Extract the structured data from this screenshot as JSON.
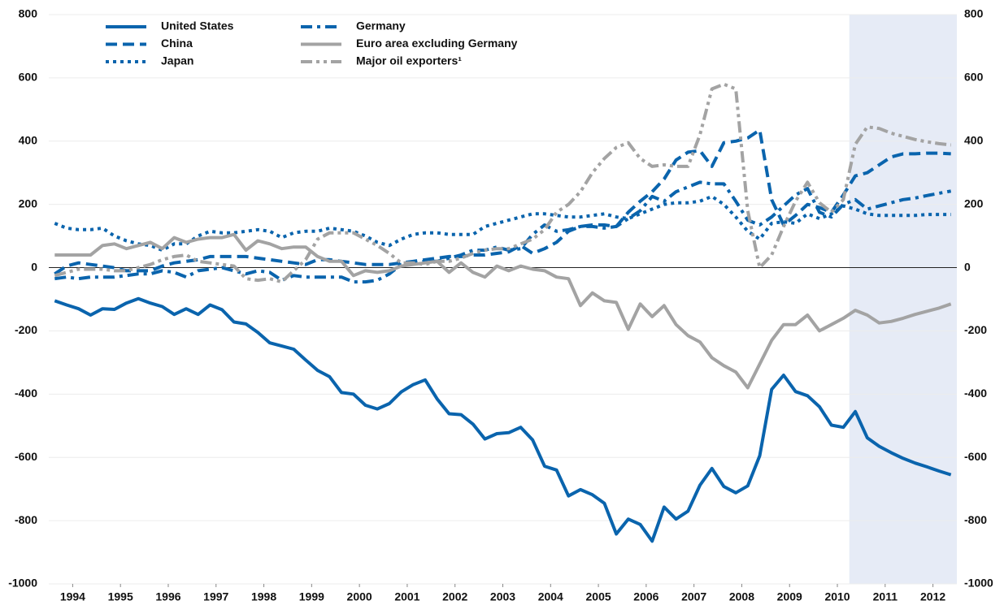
{
  "chart_data": {
    "type": "line",
    "x": [
      1994.125,
      1994.375,
      1994.625,
      1994.875,
      1995.125,
      1995.375,
      1995.625,
      1995.875,
      1996.125,
      1996.375,
      1996.625,
      1996.875,
      1997.125,
      1997.375,
      1997.625,
      1997.875,
      1998.125,
      1998.375,
      1998.625,
      1998.875,
      1999.125,
      1999.375,
      1999.625,
      1999.875,
      2000.125,
      2000.375,
      2000.625,
      2000.875,
      2001.125,
      2001.375,
      2001.625,
      2001.875,
      2002.125,
      2002.375,
      2002.625,
      2002.875,
      2003.125,
      2003.375,
      2003.625,
      2003.875,
      2004.125,
      2004.375,
      2004.625,
      2004.875,
      2005.125,
      2005.375,
      2005.625,
      2005.875,
      2006.125,
      2006.375,
      2006.625,
      2006.875,
      2007.125,
      2007.375,
      2007.625,
      2007.875,
      2008.125,
      2008.375,
      2008.625,
      2008.875,
      2009.125,
      2009.375,
      2009.625,
      2009.875,
      2010.125,
      2010.375,
      2010.625,
      2010.875,
      2011.125,
      2011.375,
      2011.625,
      2011.875,
      2012.125,
      2012.375,
      2012.625,
      2012.875
    ],
    "xlim": [
      1994,
      2013
    ],
    "xticks": [
      {
        "value": 1994.5,
        "label": "1994"
      },
      {
        "value": 1995.5,
        "label": "1995"
      },
      {
        "value": 1996.5,
        "label": "1996"
      },
      {
        "value": 1997.5,
        "label": "1997"
      },
      {
        "value": 1998.5,
        "label": "1998"
      },
      {
        "value": 1999.5,
        "label": "1999"
      },
      {
        "value": 2000.5,
        "label": "2000"
      },
      {
        "value": 2001.5,
        "label": "2001"
      },
      {
        "value": 2002.5,
        "label": "2002"
      },
      {
        "value": 2003.5,
        "label": "2003"
      },
      {
        "value": 2004.5,
        "label": "2004"
      },
      {
        "value": 2005.5,
        "label": "2005"
      },
      {
        "value": 2006.5,
        "label": "2006"
      },
      {
        "value": 2007.5,
        "label": "2007"
      },
      {
        "value": 2008.5,
        "label": "2008"
      },
      {
        "value": 2009.5,
        "label": "2009"
      },
      {
        "value": 2010.5,
        "label": "2010"
      },
      {
        "value": 2011.5,
        "label": "2011"
      },
      {
        "value": 2012.5,
        "label": "2012"
      }
    ],
    "ylim": [
      -1000,
      800
    ],
    "yticks": [
      -1000,
      -800,
      -600,
      -400,
      -200,
      0,
      200,
      400,
      600,
      800
    ],
    "y2lim": [
      -1000,
      800
    ],
    "y2ticks": [
      -1000,
      -800,
      -600,
      -400,
      -200,
      0,
      200,
      400,
      600,
      800
    ],
    "grid": true,
    "shaded_region": {
      "xlim": [
        2010.75,
        2013
      ],
      "color": "#e6ebf6"
    },
    "series": [
      {
        "name": "United States",
        "color": "#0a64ad",
        "dash": "solid",
        "values": [
          -105,
          -118,
          -130,
          -150,
          -130,
          -132,
          -112,
          -98,
          -112,
          -123,
          -148,
          -130,
          -148,
          -118,
          -133,
          -172,
          -178,
          -205,
          -238,
          -248,
          -258,
          -292,
          -325,
          -345,
          -395,
          -400,
          -435,
          -447,
          -430,
          -393,
          -370,
          -355,
          -415,
          -462,
          -465,
          -495,
          -542,
          -525,
          -522,
          -505,
          -545,
          -628,
          -640,
          -722,
          -702,
          -718,
          -745,
          -842,
          -795,
          -812,
          -865,
          -757,
          -795,
          -770,
          -688,
          -635,
          -692,
          -712,
          -690,
          -595,
          -385,
          -340,
          -392,
          -405,
          -440,
          -498,
          -505,
          -455,
          -538,
          -565,
          -585,
          -603,
          -618,
          -630,
          -643,
          -655
        ]
      },
      {
        "name": "China",
        "color": "#0a64ad",
        "dash": "dashed",
        "values": [
          -20,
          5,
          15,
          10,
          5,
          0,
          -10,
          -10,
          -10,
          5,
          15,
          20,
          25,
          35,
          35,
          35,
          35,
          30,
          25,
          20,
          15,
          10,
          25,
          25,
          20,
          15,
          10,
          10,
          10,
          15,
          20,
          25,
          30,
          35,
          35,
          40,
          40,
          45,
          50,
          70,
          45,
          60,
          80,
          115,
          130,
          135,
          135,
          130,
          175,
          210,
          240,
          280,
          340,
          365,
          370,
          320,
          395,
          400,
          410,
          435,
          215,
          135,
          165,
          200,
          190,
          175,
          230,
          290,
          300,
          325,
          350,
          360,
          360,
          362,
          362,
          360
        ]
      },
      {
        "name": "Japan",
        "color": "#0a64ad",
        "dash": "dotted",
        "values": [
          140,
          125,
          120,
          120,
          125,
          100,
          85,
          75,
          70,
          55,
          75,
          75,
          100,
          115,
          110,
          110,
          115,
          120,
          115,
          95,
          110,
          115,
          115,
          125,
          120,
          115,
          100,
          80,
          70,
          90,
          105,
          110,
          110,
          105,
          105,
          105,
          130,
          140,
          150,
          160,
          170,
          170,
          165,
          160,
          160,
          165,
          170,
          160,
          155,
          170,
          185,
          200,
          205,
          205,
          210,
          225,
          200,
          160,
          115,
          90,
          140,
          145,
          140,
          170,
          155,
          170,
          195,
          185,
          170,
          165,
          165,
          165,
          165,
          168,
          168,
          168
        ]
      },
      {
        "name": "Germany",
        "color": "#0a64ad",
        "dash": "dashdot",
        "values": [
          -35,
          -30,
          -35,
          -30,
          -30,
          -30,
          -25,
          -20,
          -20,
          -10,
          -15,
          -30,
          -10,
          -5,
          0,
          -10,
          -20,
          -10,
          -15,
          -40,
          -25,
          -30,
          -30,
          -30,
          -30,
          -45,
          -45,
          -40,
          -20,
          10,
          15,
          20,
          20,
          30,
          40,
          55,
          55,
          65,
          55,
          60,
          105,
          135,
          115,
          120,
          130,
          130,
          125,
          130,
          155,
          180,
          225,
          210,
          240,
          255,
          270,
          265,
          265,
          210,
          150,
          135,
          160,
          195,
          230,
          250,
          175,
          160,
          200,
          215,
          185,
          195,
          205,
          215,
          220,
          228,
          235,
          242
        ]
      },
      {
        "name": "Euro area excluding Germany",
        "color": "#a3a3a3",
        "dash": "solid",
        "values": [
          40,
          40,
          40,
          40,
          70,
          75,
          60,
          70,
          80,
          60,
          95,
          80,
          90,
          95,
          95,
          105,
          55,
          85,
          75,
          60,
          65,
          65,
          35,
          20,
          20,
          -25,
          -10,
          -15,
          -10,
          5,
          10,
          15,
          20,
          -15,
          15,
          -15,
          -30,
          5,
          -10,
          5,
          -5,
          -10,
          -30,
          -35,
          -120,
          -80,
          -105,
          -110,
          -195,
          -115,
          -155,
          -120,
          -180,
          -215,
          -235,
          -285,
          -310,
          -330,
          -380,
          -305,
          -230,
          -180,
          -180,
          -150,
          -200,
          -180,
          -160,
          -135,
          -150,
          -175,
          -170,
          -160,
          -148,
          -138,
          -128,
          -115
        ]
      },
      {
        "name": "Major oil exporters¹",
        "color": "#a3a3a3",
        "dash": "dashdotdot",
        "values": [
          -25,
          -15,
          -5,
          -5,
          -5,
          -10,
          -10,
          0,
          10,
          25,
          35,
          40,
          20,
          15,
          10,
          5,
          -35,
          -40,
          -35,
          -45,
          -10,
          25,
          90,
          110,
          110,
          110,
          90,
          70,
          45,
          15,
          15,
          10,
          20,
          20,
          30,
          45,
          55,
          60,
          60,
          75,
          90,
          120,
          175,
          200,
          240,
          300,
          345,
          380,
          395,
          345,
          320,
          325,
          320,
          320,
          420,
          565,
          580,
          565,
          180,
          0,
          40,
          130,
          210,
          270,
          205,
          175,
          215,
          390,
          445,
          440,
          425,
          415,
          405,
          398,
          392,
          388
        ]
      }
    ]
  }
}
